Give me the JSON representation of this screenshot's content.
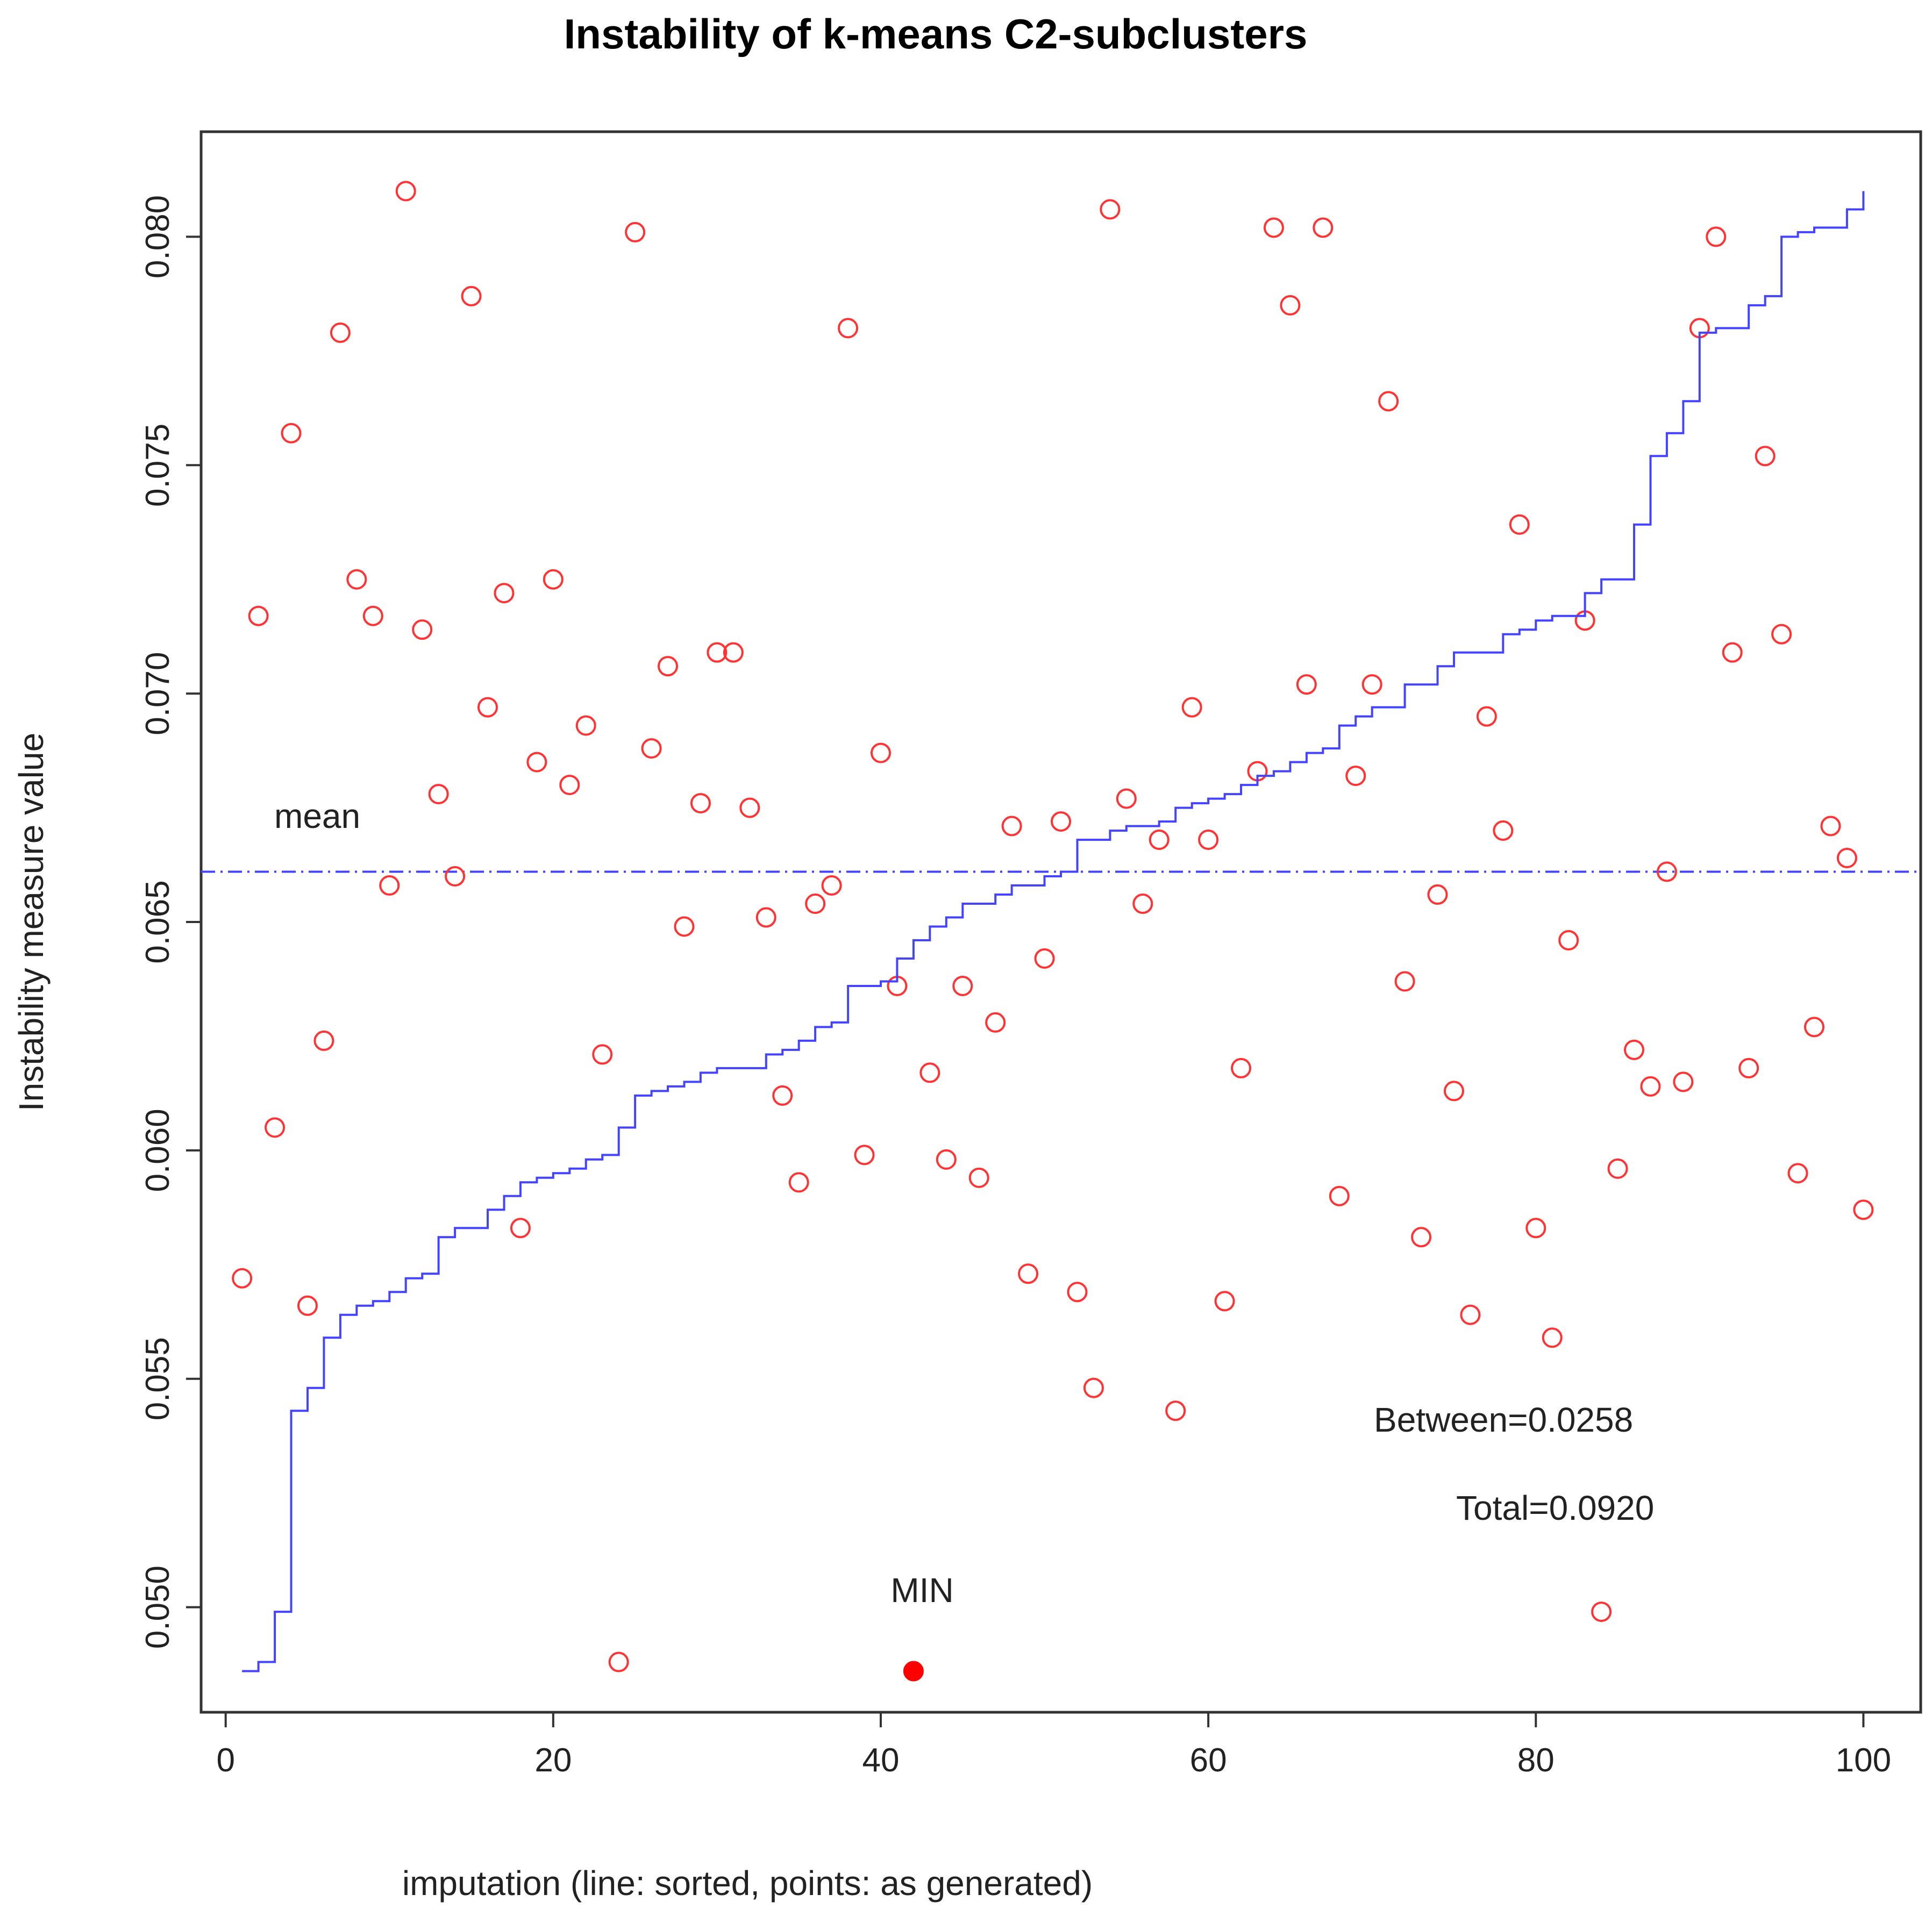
{
  "chart_data": {
    "type": "scatter",
    "title": "Instability of k-means C2-subclusters",
    "xlabel": "imputation (line: sorted, points: as generated)",
    "ylabel": "Instability measure value",
    "xlim": [
      -1.5,
      103.5
    ],
    "ylim": [
      0.0477,
      0.0823
    ],
    "x_ticks": [
      0,
      20,
      40,
      60,
      80,
      100
    ],
    "x_tick_labels": [
      "0",
      "20",
      "40",
      "60",
      "80",
      "100"
    ],
    "y_ticks": [
      0.05,
      0.055,
      0.06,
      0.065,
      0.07,
      0.075,
      0.08
    ],
    "y_tick_labels": [
      "0.050",
      "0.055",
      "0.060",
      "0.065",
      "0.070",
      "0.075",
      "0.080"
    ],
    "series": [
      {
        "name": "points: as generated",
        "kind": "points",
        "color": "#ff3333",
        "x": [
          1,
          2,
          3,
          4,
          5,
          6,
          7,
          8,
          9,
          10,
          11,
          12,
          13,
          14,
          15,
          16,
          17,
          18,
          19,
          20,
          21,
          22,
          23,
          24,
          25,
          26,
          27,
          28,
          29,
          30,
          31,
          32,
          33,
          34,
          35,
          36,
          37,
          38,
          39,
          40,
          41,
          43,
          44,
          45,
          46,
          47,
          48,
          49,
          50,
          51,
          52,
          53,
          54,
          55,
          56,
          57,
          58,
          59,
          60,
          61,
          62,
          63,
          64,
          65,
          66,
          67,
          68,
          69,
          70,
          71,
          72,
          73,
          74,
          75,
          76,
          77,
          78,
          79,
          80,
          81,
          82,
          83,
          84,
          85,
          86,
          87,
          88,
          89,
          90,
          91,
          92,
          93,
          94,
          95,
          96,
          97,
          98,
          99,
          100
        ],
        "values": [
          0.0572,
          0.0717,
          0.0605,
          0.0757,
          0.0566,
          0.0624,
          0.0779,
          0.0725,
          0.0717,
          0.0658,
          0.081,
          0.0714,
          0.0678,
          0.066,
          0.0787,
          0.0697,
          0.0722,
          0.0583,
          0.0685,
          0.0725,
          0.068,
          0.0693,
          0.0621,
          0.0488,
          0.0801,
          0.0688,
          0.0706,
          0.0649,
          0.0676,
          0.0709,
          0.0709,
          0.0675,
          0.0651,
          0.0612,
          0.0593,
          0.0654,
          0.0658,
          0.078,
          0.0599,
          0.0687,
          0.0636,
          0.0617,
          0.0598,
          0.0636,
          0.0594,
          0.0628,
          0.0671,
          0.0573,
          0.0642,
          0.0672,
          0.0569,
          0.0548,
          0.0806,
          0.0677,
          0.0654,
          0.0668,
          0.0543,
          0.0697,
          0.0668,
          0.0567,
          0.0618,
          0.0683,
          0.0802,
          0.0785,
          0.0702,
          0.0802,
          0.059,
          0.0682,
          0.0702,
          0.0764,
          0.0637,
          0.0581,
          0.0656,
          0.0613,
          0.0564,
          0.0695,
          0.067,
          0.0737,
          0.0583,
          0.0559,
          0.0646,
          0.0716,
          0.0499,
          0.0596,
          0.0622,
          0.0614,
          0.0661,
          0.0615,
          0.078,
          0.08,
          0.0709,
          0.0618,
          0.0752,
          0.0713,
          0.0595,
          0.0627,
          0.0671,
          0.0664,
          0.0587
        ]
      },
      {
        "name": "line: sorted",
        "kind": "step",
        "color": "#4444ff",
        "x": [
          1,
          2,
          3,
          4,
          5,
          6,
          7,
          8,
          9,
          10,
          11,
          12,
          13,
          14,
          15,
          16,
          17,
          18,
          19,
          20,
          21,
          22,
          23,
          24,
          25,
          26,
          27,
          28,
          29,
          30,
          31,
          32,
          33,
          34,
          35,
          36,
          37,
          38,
          39,
          40,
          41,
          42,
          43,
          44,
          45,
          46,
          47,
          48,
          49,
          50,
          51,
          52,
          53,
          54,
          55,
          56,
          57,
          58,
          59,
          60,
          61,
          62,
          63,
          64,
          65,
          66,
          67,
          68,
          69,
          70,
          71,
          72,
          73,
          74,
          75,
          76,
          77,
          78,
          79,
          80,
          81,
          82,
          83,
          84,
          85,
          86,
          87,
          88,
          89,
          90,
          91,
          92,
          93,
          94,
          95,
          96,
          97,
          98,
          99,
          100
        ],
        "values": [
          0.0486,
          0.0488,
          0.0499,
          0.0543,
          0.0548,
          0.0559,
          0.0564,
          0.0566,
          0.0567,
          0.0569,
          0.0572,
          0.0573,
          0.0581,
          0.0583,
          0.0583,
          0.0587,
          0.059,
          0.0593,
          0.0594,
          0.0595,
          0.0596,
          0.0598,
          0.0599,
          0.0605,
          0.0612,
          0.0613,
          0.0614,
          0.0615,
          0.0617,
          0.0618,
          0.0618,
          0.0618,
          0.0621,
          0.0622,
          0.0624,
          0.0627,
          0.0628,
          0.0636,
          0.0636,
          0.0637,
          0.0642,
          0.0646,
          0.0649,
          0.0651,
          0.0654,
          0.0654,
          0.0656,
          0.0658,
          0.0658,
          0.066,
          0.0661,
          0.0668,
          0.0668,
          0.067,
          0.0671,
          0.0671,
          0.0672,
          0.0675,
          0.0676,
          0.0677,
          0.0678,
          0.068,
          0.0682,
          0.0683,
          0.0685,
          0.0687,
          0.0688,
          0.0693,
          0.0695,
          0.0697,
          0.0697,
          0.0702,
          0.0702,
          0.0706,
          0.0709,
          0.0709,
          0.0709,
          0.0713,
          0.0714,
          0.0716,
          0.0717,
          0.0717,
          0.0722,
          0.0725,
          0.0725,
          0.0737,
          0.0752,
          0.0757,
          0.0764,
          0.0779,
          0.078,
          0.078,
          0.0785,
          0.0787,
          0.08,
          0.0801,
          0.0802,
          0.0802,
          0.0806,
          0.081
        ]
      }
    ],
    "mean": {
      "value": 0.0661,
      "label": "mean",
      "color": "#4444ff"
    },
    "min_point": {
      "x": 42,
      "value": 0.0486,
      "label": "MIN",
      "color": "#ff0000"
    },
    "annotations": {
      "between": "Between=0.0258",
      "total": "Total=0.0920"
    }
  }
}
